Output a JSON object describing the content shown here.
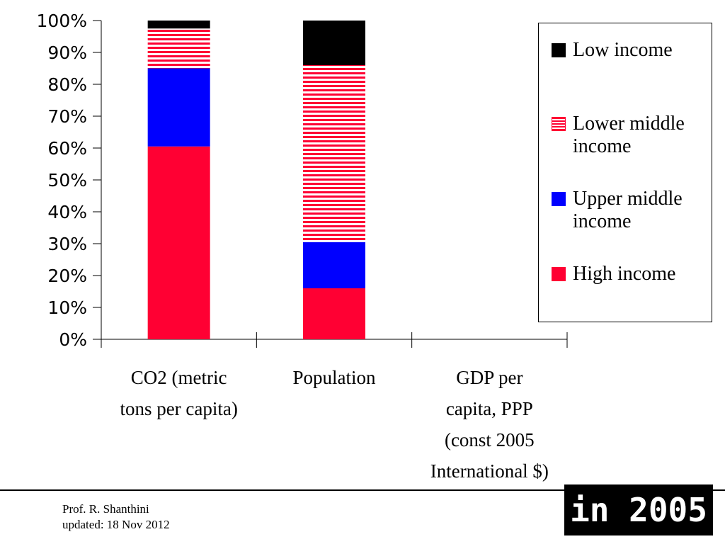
{
  "chart_data": {
    "type": "bar",
    "stacked": true,
    "categories": [
      "CO2 (metric tons per capita)",
      "Population",
      "GDP per capita, PPP (const 2005 International $)"
    ],
    "category_lines": [
      [
        "CO2 (metric",
        "tons per capita)"
      ],
      [
        "Population"
      ],
      [
        "GDP per",
        "capita, PPP",
        "(const 2005",
        "International $)"
      ]
    ],
    "series": [
      {
        "name": "High income",
        "color": "#ff0033",
        "pattern": "solid",
        "values": [
          60.5,
          16,
          null
        ]
      },
      {
        "name": "Upper middle income",
        "color": "#0000ff",
        "pattern": "solid",
        "values": [
          24.5,
          14.5,
          null
        ]
      },
      {
        "name": "Lower middle income",
        "color": "#ff0033",
        "pattern": "horizontal-stripes",
        "values": [
          12.5,
          55.5,
          null
        ]
      },
      {
        "name": "Low income",
        "color": "#000000",
        "pattern": "solid",
        "values": [
          2.5,
          14,
          null
        ]
      }
    ],
    "ylim": [
      0,
      100
    ],
    "yticks": [
      "0%",
      "10%",
      "20%",
      "30%",
      "40%",
      "50%",
      "60%",
      "70%",
      "80%",
      "90%",
      "100%"
    ],
    "ylabel": "",
    "xlabel": "",
    "title": "",
    "grid": false,
    "legend_position": "right",
    "legend": [
      {
        "label_lines": [
          "Low income"
        ],
        "color": "#000000",
        "pattern": "solid"
      },
      {
        "label_lines": [
          "Lower middle",
          "income"
        ],
        "color": "#ff0033",
        "pattern": "horizontal-stripes"
      },
      {
        "label_lines": [
          "Upper middle",
          "income"
        ],
        "color": "#0000ff",
        "pattern": "solid"
      },
      {
        "label_lines": [
          "High income"
        ],
        "color": "#ff0033",
        "pattern": "solid"
      }
    ]
  },
  "footer": {
    "author": "Prof. R. Shanthini",
    "updated": "updated: 18 Nov 2012"
  },
  "badge": {
    "text": "in 2005"
  }
}
